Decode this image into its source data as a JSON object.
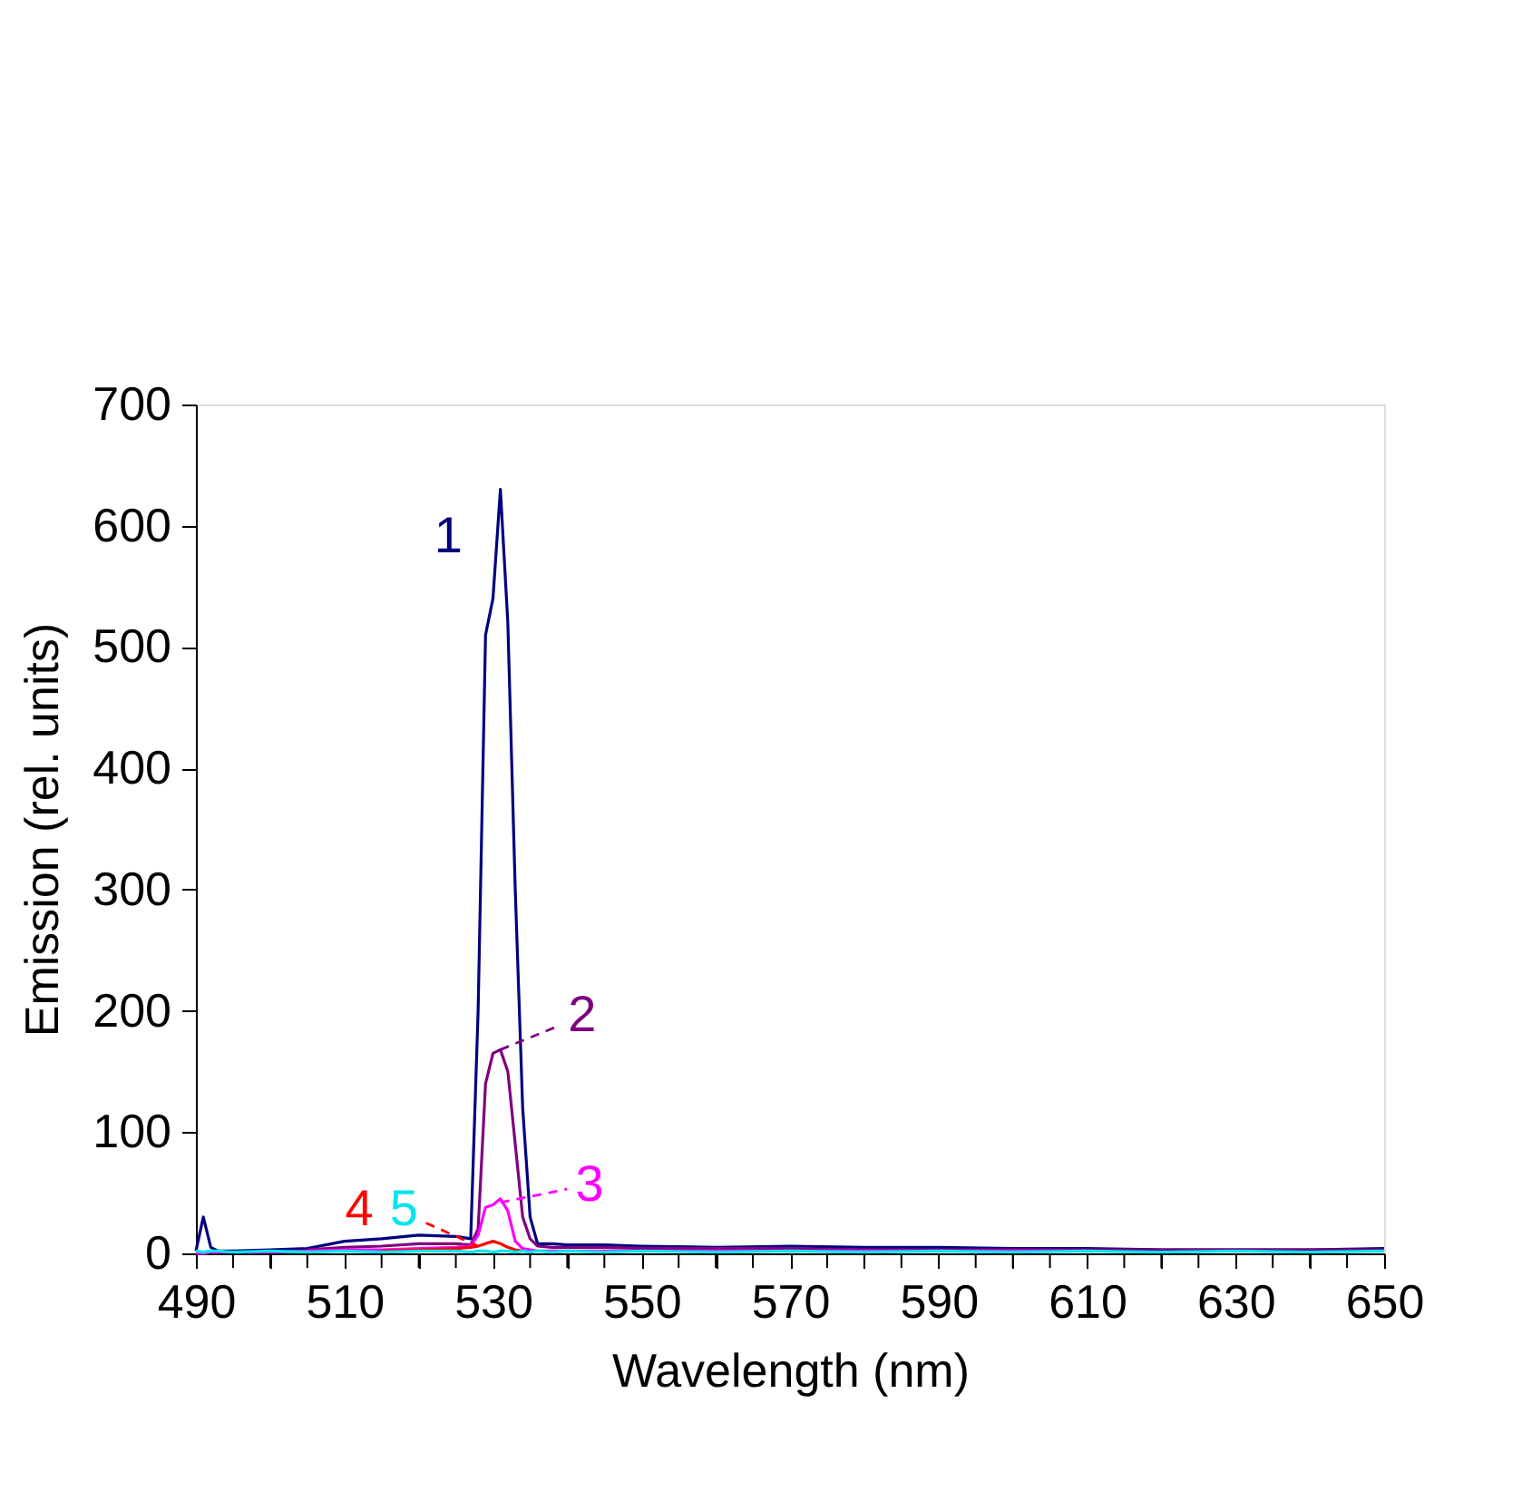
{
  "chart_data": {
    "type": "line",
    "xlabel": "Wavelength (nm)",
    "ylabel": "Emission (rel. units)",
    "x": [
      490,
      491,
      492,
      493,
      495,
      500,
      505,
      510,
      515,
      520,
      525,
      527,
      528,
      529,
      530,
      531,
      532,
      533,
      534,
      535,
      536,
      538,
      540,
      545,
      550,
      560,
      570,
      580,
      590,
      600,
      610,
      620,
      630,
      640,
      650
    ],
    "xlim": [
      490,
      650
    ],
    "ylim": [
      0,
      700
    ],
    "xticks": [
      490,
      {
        "value": 495,
        "label": null
      },
      {
        "value": 500,
        "label": null
      },
      {
        "value": 505,
        "label": null
      },
      510,
      {
        "value": 515,
        "label": null
      },
      {
        "value": 520,
        "label": null
      },
      {
        "value": 525,
        "label": null
      },
      530,
      {
        "value": 535,
        "label": null
      },
      {
        "value": 540,
        "label": null
      },
      {
        "value": 545,
        "label": null
      },
      550,
      {
        "value": 555,
        "label": null
      },
      {
        "value": 560,
        "label": null
      },
      {
        "value": 565,
        "label": null
      },
      570,
      {
        "value": 575,
        "label": null
      },
      {
        "value": 580,
        "label": null
      },
      {
        "value": 585,
        "label": null
      },
      590,
      {
        "value": 595,
        "label": null
      },
      {
        "value": 600,
        "label": null
      },
      {
        "value": 605,
        "label": null
      },
      610,
      {
        "value": 615,
        "label": null
      },
      {
        "value": 620,
        "label": null
      },
      {
        "value": 625,
        "label": null
      },
      630,
      {
        "value": 635,
        "label": null
      },
      {
        "value": 640,
        "label": null
      },
      {
        "value": 645,
        "label": null
      },
      650
    ],
    "yticks": [
      0,
      100,
      200,
      300,
      400,
      500,
      600,
      700
    ],
    "grid": false,
    "legend": "bottom left",
    "line_style": "solid",
    "marker": "none",
    "series": [
      {
        "name": "1",
        "color": "#00007f",
        "values": [
          2,
          30,
          5,
          2,
          2,
          3,
          4,
          10,
          12,
          15,
          14,
          12,
          200,
          510,
          540,
          630,
          520,
          300,
          120,
          30,
          8,
          8,
          7,
          7,
          6,
          5,
          6,
          5,
          5,
          4,
          4,
          3,
          3,
          3,
          4
        ]
      },
      {
        "name": "2",
        "color": "#7f007f",
        "values": [
          null,
          null,
          null,
          null,
          null,
          null,
          3,
          5,
          6,
          8,
          8,
          7,
          20,
          140,
          165,
          168,
          150,
          90,
          30,
          12,
          6,
          5,
          5,
          5,
          4,
          4,
          4,
          3,
          3,
          3,
          3,
          3,
          3,
          3,
          3
        ]
      },
      {
        "name": "3",
        "color": "#ff00ff",
        "values": [
          0,
          0,
          1,
          1,
          1,
          1,
          2,
          3,
          3,
          4,
          5,
          6,
          15,
          38,
          40,
          45,
          35,
          10,
          4,
          3,
          2,
          2,
          2,
          2,
          2,
          2,
          2,
          2,
          2,
          2,
          2,
          null,
          null,
          null,
          null
        ]
      },
      {
        "name": "4",
        "color": "#ff0000",
        "values": [
          null,
          null,
          null,
          null,
          null,
          null,
          null,
          null,
          2,
          3,
          4,
          5,
          6,
          8,
          10,
          8,
          5,
          3,
          2,
          null,
          null,
          null,
          null,
          null,
          null,
          null,
          null,
          null,
          null,
          null,
          null,
          null,
          null,
          null,
          null
        ]
      },
      {
        "name": "5",
        "color": "#00e5ee",
        "values": [
          2,
          1,
          2,
          2,
          1,
          2,
          1,
          2,
          1,
          2,
          2,
          1,
          2,
          2,
          1,
          2,
          2,
          1,
          2,
          1,
          2,
          1,
          2,
          1,
          2,
          1,
          2,
          1,
          2,
          1,
          2,
          1,
          2,
          1,
          2
        ]
      }
    ]
  }
}
